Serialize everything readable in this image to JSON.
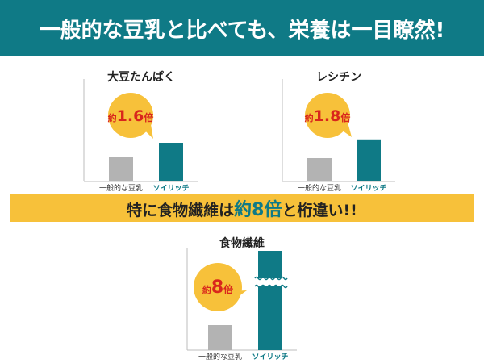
{
  "header": {
    "title": "一般的な豆乳と比べても、栄養は一目瞭然!"
  },
  "banner": {
    "text_pre": "特に食物繊維は",
    "text_em": "約8倍",
    "text_post": "と桁違い!!"
  },
  "colors": {
    "teal": "#0f7a86",
    "gray": "#b3b3b3",
    "yellow": "#f7c13a",
    "red": "#d9261c"
  },
  "chart_data": [
    {
      "type": "bar",
      "title": "大豆たんぱく",
      "categories": [
        "一般的な豆乳",
        "ソイリッチ"
      ],
      "values": [
        1,
        1.6
      ],
      "badge": {
        "prefix": "約",
        "value": "1.6",
        "suffix": "倍"
      }
    },
    {
      "type": "bar",
      "title": "レシチン",
      "categories": [
        "一般的な豆乳",
        "ソイリッチ"
      ],
      "values": [
        1,
        1.8
      ],
      "badge": {
        "prefix": "約",
        "value": "1.8",
        "suffix": "倍"
      }
    },
    {
      "type": "bar",
      "title": "食物繊維",
      "categories": [
        "一般的な豆乳",
        "ソイリッチ"
      ],
      "values": [
        1,
        8
      ],
      "axis_break": true,
      "badge": {
        "prefix": "約",
        "value": "8",
        "suffix": "倍"
      }
    }
  ]
}
